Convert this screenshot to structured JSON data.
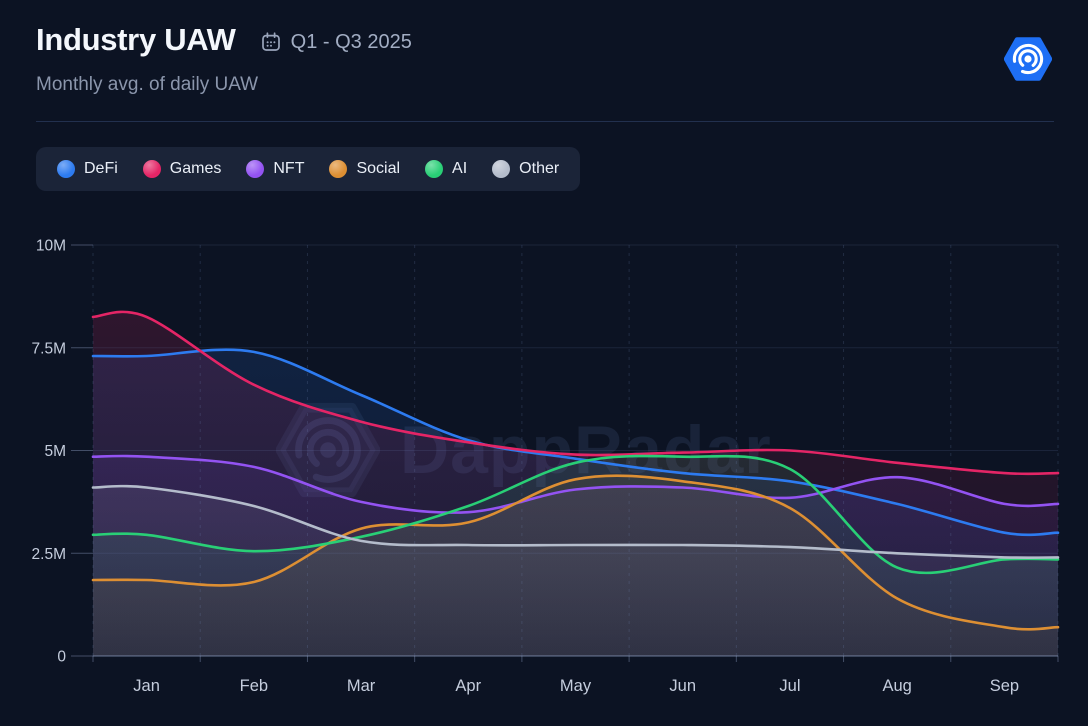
{
  "header": {
    "title": "Industry UAW",
    "period": "Q1 - Q3 2025",
    "subtitle": "Monthly avg. of daily UAW"
  },
  "watermark": "DappRadar",
  "logo": {
    "name": "dappradar-logo",
    "color": "#1e6ff5"
  },
  "legend": {
    "position": "top-left"
  },
  "chart_data": {
    "type": "line",
    "title": "Industry UAW",
    "subtitle": "Monthly avg. of daily UAW",
    "period": "Q1 - Q3 2025",
    "unit": "millions of unique active wallets",
    "categories": [
      "Jan",
      "Feb",
      "Mar",
      "Apr",
      "May",
      "Jun",
      "Jul",
      "Aug",
      "Sep"
    ],
    "y_ticks": {
      "labels": [
        "0",
        "2.5M",
        "5M",
        "7.5M",
        "10M"
      ],
      "values": [
        0,
        2.5,
        5,
        7.5,
        10
      ]
    },
    "ylim": [
      0,
      10
    ],
    "grid": {
      "vertical": "dashed",
      "horizontal": "solid"
    },
    "legend_position": "top-left",
    "series": [
      {
        "name": "DeFi",
        "color": "#2d7bf0",
        "values": [
          7.3,
          7.4,
          6.35,
          5.25,
          4.8,
          4.45,
          4.25,
          3.7,
          3.0
        ]
      },
      {
        "name": "Games",
        "color": "#e42566",
        "values": [
          8.25,
          6.6,
          5.7,
          5.2,
          4.9,
          4.95,
          5.0,
          4.7,
          4.45
        ]
      },
      {
        "name": "NFT",
        "color": "#9353f2",
        "values": [
          4.85,
          4.6,
          3.75,
          3.5,
          4.05,
          4.1,
          3.85,
          4.35,
          3.7
        ]
      },
      {
        "name": "Social",
        "color": "#dd8f33",
        "values": [
          1.85,
          1.8,
          3.1,
          3.25,
          4.3,
          4.25,
          3.6,
          1.4,
          0.7
        ]
      },
      {
        "name": "AI",
        "color": "#29cf76",
        "values": [
          2.95,
          2.55,
          2.9,
          3.65,
          4.7,
          4.85,
          4.55,
          2.15,
          2.35
        ]
      },
      {
        "name": "Other",
        "color": "#b4bccb",
        "values": [
          4.1,
          3.65,
          2.8,
          2.7,
          2.7,
          2.7,
          2.65,
          2.5,
          2.4
        ]
      }
    ]
  }
}
